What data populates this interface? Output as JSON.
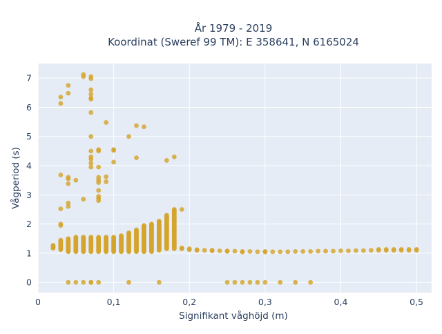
{
  "chart_data": {
    "type": "scatter",
    "title_lines": [
      "År 1979 - 2019",
      "Koordinat (Sweref 99 TM): E 358641, N 6165024"
    ],
    "xlabel": "Signifikant våghöjd (m)",
    "ylabel": "Vågperiod (s)",
    "xlim": [
      0,
      0.52
    ],
    "ylim": [
      -0.35,
      7.5
    ],
    "x_ticks": [
      0,
      0.1,
      0.2,
      0.3,
      0.4,
      0.5
    ],
    "x_tick_labels": [
      "0",
      "0,1",
      "0,2",
      "0,3",
      "0,4",
      "0,5"
    ],
    "y_ticks": [
      0,
      1,
      2,
      3,
      4,
      5,
      6,
      7
    ],
    "y_tick_labels": [
      "0",
      "1",
      "2",
      "3",
      "4",
      "5",
      "6",
      "7"
    ],
    "grid": true,
    "legend": "none",
    "colors": {
      "marker": "#d4a42c",
      "plot_bg": "#e5ecf6",
      "grid": "#ffffff",
      "text": "#2a3f5f"
    },
    "columns": [
      {
        "x": 0.02,
        "y_min": 1.17,
        "y_max": 1.27
      },
      {
        "x": 0.03,
        "y_min": 1.12,
        "y_max": 1.45
      },
      {
        "x": 0.04,
        "y_min": 1.05,
        "y_max": 1.52
      },
      {
        "x": 0.05,
        "y_min": 1.05,
        "y_max": 1.55
      },
      {
        "x": 0.06,
        "y_min": 1.05,
        "y_max": 1.55
      },
      {
        "x": 0.07,
        "y_min": 1.05,
        "y_max": 1.55
      },
      {
        "x": 0.08,
        "y_min": 1.05,
        "y_max": 1.57
      },
      {
        "x": 0.09,
        "y_min": 1.05,
        "y_max": 1.57
      },
      {
        "x": 0.1,
        "y_min": 1.05,
        "y_max": 1.57
      },
      {
        "x": 0.11,
        "y_min": 1.05,
        "y_max": 1.6
      },
      {
        "x": 0.12,
        "y_min": 1.05,
        "y_max": 1.72
      },
      {
        "x": 0.13,
        "y_min": 1.05,
        "y_max": 1.8
      },
      {
        "x": 0.14,
        "y_min": 1.05,
        "y_max": 1.95
      },
      {
        "x": 0.15,
        "y_min": 1.05,
        "y_max": 2.02
      },
      {
        "x": 0.16,
        "y_min": 1.1,
        "y_max": 2.1
      },
      {
        "x": 0.17,
        "y_min": 1.15,
        "y_max": 2.3
      },
      {
        "x": 0.18,
        "y_min": 1.15,
        "y_max": 2.5
      }
    ],
    "points": [
      {
        "x": 0.03,
        "y": 6.35
      },
      {
        "x": 0.03,
        "y": 6.13
      },
      {
        "x": 0.03,
        "y": 3.68
      },
      {
        "x": 0.03,
        "y": 2.52
      },
      {
        "x": 0.03,
        "y": 2.0
      },
      {
        "x": 0.03,
        "y": 1.95
      },
      {
        "x": 0.04,
        "y": 6.75
      },
      {
        "x": 0.04,
        "y": 6.48
      },
      {
        "x": 0.04,
        "y": 3.6
      },
      {
        "x": 0.04,
        "y": 3.55
      },
      {
        "x": 0.04,
        "y": 3.38
      },
      {
        "x": 0.04,
        "y": 2.72
      },
      {
        "x": 0.04,
        "y": 2.6
      },
      {
        "x": 0.04,
        "y": 0
      },
      {
        "x": 0.05,
        "y": 3.5
      },
      {
        "x": 0.05,
        "y": 0
      },
      {
        "x": 0.06,
        "y": 7.12
      },
      {
        "x": 0.06,
        "y": 7.05
      },
      {
        "x": 0.06,
        "y": 2.85
      },
      {
        "x": 0.06,
        "y": 0
      },
      {
        "x": 0.07,
        "y": 7.05
      },
      {
        "x": 0.07,
        "y": 6.98
      },
      {
        "x": 0.07,
        "y": 6.6
      },
      {
        "x": 0.07,
        "y": 6.45
      },
      {
        "x": 0.07,
        "y": 6.32
      },
      {
        "x": 0.07,
        "y": 6.28
      },
      {
        "x": 0.07,
        "y": 5.82
      },
      {
        "x": 0.07,
        "y": 5.0
      },
      {
        "x": 0.07,
        "y": 4.5
      },
      {
        "x": 0.07,
        "y": 4.3
      },
      {
        "x": 0.07,
        "y": 4.22
      },
      {
        "x": 0.07,
        "y": 4.08
      },
      {
        "x": 0.07,
        "y": 3.95
      },
      {
        "x": 0.07,
        "y": 0
      },
      {
        "x": 0.07,
        "y": 0
      },
      {
        "x": 0.08,
        "y": 4.55
      },
      {
        "x": 0.08,
        "y": 4.5
      },
      {
        "x": 0.08,
        "y": 3.95
      },
      {
        "x": 0.08,
        "y": 3.6
      },
      {
        "x": 0.08,
        "y": 3.5
      },
      {
        "x": 0.08,
        "y": 3.42
      },
      {
        "x": 0.08,
        "y": 3.15
      },
      {
        "x": 0.08,
        "y": 2.95
      },
      {
        "x": 0.08,
        "y": 2.88
      },
      {
        "x": 0.08,
        "y": 2.8
      },
      {
        "x": 0.08,
        "y": 0
      },
      {
        "x": 0.09,
        "y": 5.48
      },
      {
        "x": 0.09,
        "y": 3.62
      },
      {
        "x": 0.09,
        "y": 3.45
      },
      {
        "x": 0.1,
        "y": 4.55
      },
      {
        "x": 0.1,
        "y": 4.52
      },
      {
        "x": 0.1,
        "y": 4.12
      },
      {
        "x": 0.12,
        "y": 5.0
      },
      {
        "x": 0.12,
        "y": 0
      },
      {
        "x": 0.13,
        "y": 5.37
      },
      {
        "x": 0.13,
        "y": 4.27
      },
      {
        "x": 0.14,
        "y": 5.33
      },
      {
        "x": 0.16,
        "y": 0
      },
      {
        "x": 0.17,
        "y": 4.18
      },
      {
        "x": 0.18,
        "y": 4.3
      },
      {
        "x": 0.19,
        "y": 2.5
      },
      {
        "x": 0.19,
        "y": 1.18
      },
      {
        "x": 0.19,
        "y": 1.15
      },
      {
        "x": 0.2,
        "y": 1.15
      },
      {
        "x": 0.2,
        "y": 1.12
      },
      {
        "x": 0.21,
        "y": 1.12
      },
      {
        "x": 0.21,
        "y": 1.1
      },
      {
        "x": 0.22,
        "y": 1.1
      },
      {
        "x": 0.23,
        "y": 1.1
      },
      {
        "x": 0.23,
        "y": 1.08
      },
      {
        "x": 0.24,
        "y": 1.08
      },
      {
        "x": 0.25,
        "y": 1.08
      },
      {
        "x": 0.25,
        "y": 1.06
      },
      {
        "x": 0.25,
        "y": 0
      },
      {
        "x": 0.26,
        "y": 1.07
      },
      {
        "x": 0.26,
        "y": 0
      },
      {
        "x": 0.27,
        "y": 1.06
      },
      {
        "x": 0.27,
        "y": 1.04
      },
      {
        "x": 0.27,
        "y": 0
      },
      {
        "x": 0.28,
        "y": 1.06
      },
      {
        "x": 0.28,
        "y": 0
      },
      {
        "x": 0.29,
        "y": 1.05
      },
      {
        "x": 0.29,
        "y": 0
      },
      {
        "x": 0.3,
        "y": 1.06
      },
      {
        "x": 0.3,
        "y": 1.04
      },
      {
        "x": 0.3,
        "y": 0
      },
      {
        "x": 0.31,
        "y": 1.05
      },
      {
        "x": 0.32,
        "y": 1.05
      },
      {
        "x": 0.32,
        "y": 0
      },
      {
        "x": 0.33,
        "y": 1.05
      },
      {
        "x": 0.34,
        "y": 1.06
      },
      {
        "x": 0.34,
        "y": 0
      },
      {
        "x": 0.35,
        "y": 1.06
      },
      {
        "x": 0.36,
        "y": 1.06
      },
      {
        "x": 0.36,
        "y": 0
      },
      {
        "x": 0.37,
        "y": 1.07
      },
      {
        "x": 0.38,
        "y": 1.07
      },
      {
        "x": 0.39,
        "y": 1.07
      },
      {
        "x": 0.4,
        "y": 1.08
      },
      {
        "x": 0.41,
        "y": 1.08
      },
      {
        "x": 0.42,
        "y": 1.09
      },
      {
        "x": 0.43,
        "y": 1.09
      },
      {
        "x": 0.44,
        "y": 1.1
      },
      {
        "x": 0.45,
        "y": 1.1
      },
      {
        "x": 0.45,
        "y": 1.13
      },
      {
        "x": 0.46,
        "y": 1.1
      },
      {
        "x": 0.46,
        "y": 1.13
      },
      {
        "x": 0.47,
        "y": 1.1
      },
      {
        "x": 0.47,
        "y": 1.13
      },
      {
        "x": 0.48,
        "y": 1.1
      },
      {
        "x": 0.48,
        "y": 1.13
      },
      {
        "x": 0.49,
        "y": 1.1
      },
      {
        "x": 0.49,
        "y": 1.13
      },
      {
        "x": 0.5,
        "y": 1.1
      },
      {
        "x": 0.5,
        "y": 1.13
      }
    ]
  }
}
